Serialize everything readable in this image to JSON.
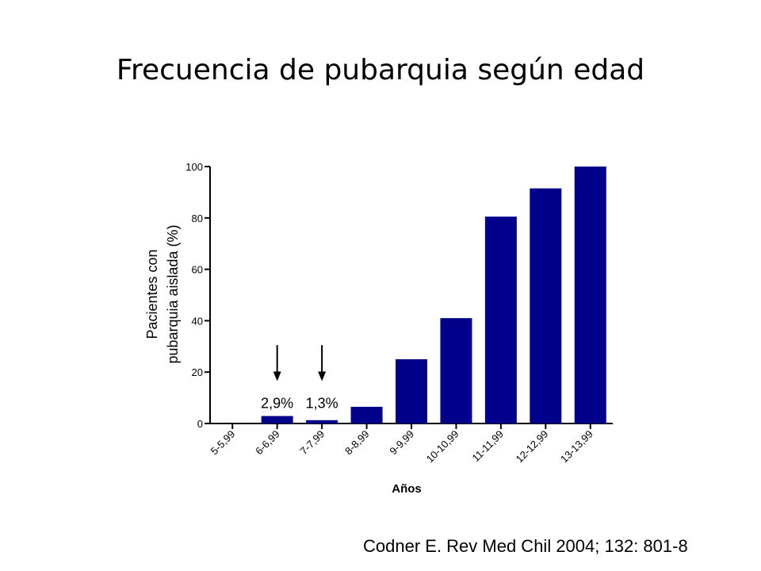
{
  "slide": {
    "title": "Frecuencia de pubarquia según edad",
    "citation": "Codner E. Rev Med Chil 2004; 132: 801-8"
  },
  "chart_data": {
    "type": "bar",
    "categories": [
      "5-5,99",
      "6-6,99",
      "7-7,99",
      "8-8,99",
      "9-9,99",
      "10-10,99",
      "11-11,99",
      "12-12,99",
      "13-13,99"
    ],
    "values": [
      0,
      2.9,
      1.3,
      6.5,
      25,
      41,
      80.5,
      91.5,
      100
    ],
    "xlabel": "Años",
    "ylabel_lines": [
      "Pacientes con",
      "pubarquia aislada (%)"
    ],
    "ylim": [
      0,
      100
    ],
    "yticks": [
      0,
      20,
      40,
      60,
      80,
      100
    ],
    "bar_color": "#00008B",
    "annotations": [
      {
        "category": "6-6,99",
        "label": "2,9%"
      },
      {
        "category": "7-7,99",
        "label": "1,3%"
      }
    ],
    "grid": false,
    "legend": "none"
  }
}
